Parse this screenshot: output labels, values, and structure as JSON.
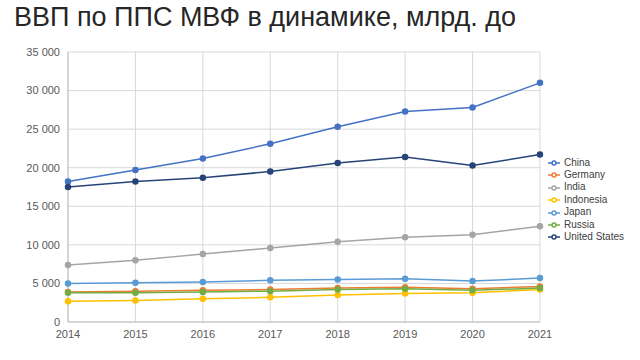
{
  "chart_data": {
    "type": "line",
    "title": "ВВП по ППС МВФ в динамике, млрд. до",
    "categories": [
      "2014",
      "2015",
      "2016",
      "2017",
      "2018",
      "2019",
      "2020",
      "2021"
    ],
    "series": [
      {
        "name": "China",
        "color": "#4472c4",
        "values": [
          18200,
          19700,
          21200,
          23100,
          25300,
          27300,
          27800,
          31000
        ]
      },
      {
        "name": "Germany",
        "color": "#ed7d31",
        "values": [
          3900,
          4000,
          4100,
          4200,
          4400,
          4500,
          4300,
          4600
        ]
      },
      {
        "name": "India",
        "color": "#a5a5a5",
        "values": [
          7400,
          8000,
          8800,
          9600,
          10400,
          11000,
          11300,
          12400
        ]
      },
      {
        "name": "Indonesia",
        "color": "#ffc000",
        "values": [
          2700,
          2800,
          3000,
          3200,
          3500,
          3700,
          3800,
          4200
        ]
      },
      {
        "name": "Japan",
        "color": "#5b9bd5",
        "values": [
          5000,
          5100,
          5200,
          5400,
          5500,
          5600,
          5300,
          5700
        ]
      },
      {
        "name": "Russia",
        "color": "#70ad47",
        "values": [
          3800,
          3800,
          3900,
          4000,
          4200,
          4300,
          4100,
          4400
        ]
      },
      {
        "name": "United States",
        "color": "#264478",
        "values": [
          17500,
          18200,
          18700,
          19500,
          20600,
          21400,
          20300,
          21700
        ]
      }
    ],
    "ylim": [
      0,
      35000
    ],
    "yticks": [
      0,
      {
        "value": 5000,
        "label": "5 000"
      },
      {
        "value": 10000,
        "label": "10 000"
      },
      {
        "value": 15000,
        "label": "15 000"
      },
      {
        "value": 20000,
        "label": "20 000"
      },
      {
        "value": 25000,
        "label": "25 000"
      },
      {
        "value": 30000,
        "label": "30 000"
      },
      {
        "value": 35000,
        "label": "35 000"
      }
    ],
    "grid": true,
    "legend": "right",
    "marker": "circle"
  }
}
